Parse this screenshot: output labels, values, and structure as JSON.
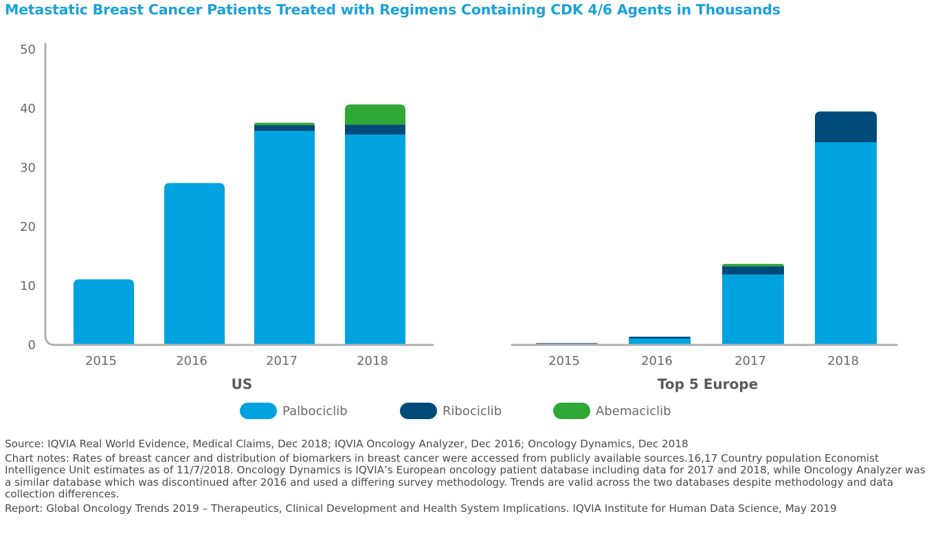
{
  "title": "Metastatic Breast Cancer Patients Treated with Regimens Containing CDK 4/6 Agents in Thousands",
  "chart_data": {
    "type": "bar",
    "stacked": true,
    "yticks": [
      0,
      10,
      20,
      30,
      40,
      50
    ],
    "ylim": [
      0,
      50
    ],
    "groups": [
      {
        "label": "US",
        "categories": [
          "2015",
          "2016",
          "2017",
          "2018"
        ],
        "series": [
          {
            "name": "Palbociclib",
            "values": [
              11.1,
              27.4,
              36.2,
              35.6
            ]
          },
          {
            "name": "Ribociclib",
            "values": [
              0,
              0,
              1.0,
              1.7
            ]
          },
          {
            "name": "Abemaciclib",
            "values": [
              0,
              0,
              0.4,
              3.4
            ]
          }
        ]
      },
      {
        "label": "Top 5 Europe",
        "categories": [
          "2015",
          "2016",
          "2017",
          "2018"
        ],
        "series": [
          {
            "name": "Palbociclib",
            "values": [
              0.2,
              1.1,
              11.9,
              34.3
            ]
          },
          {
            "name": "Ribociclib",
            "values": [
              0.1,
              0.3,
              1.4,
              5.2
            ]
          },
          {
            "name": "Abemaciclib",
            "values": [
              0,
              0,
              0.4,
              0
            ]
          }
        ]
      }
    ],
    "colors": {
      "Palbociclib": "#00a3e0",
      "Ribociclib": "#004b7a",
      "Abemaciclib": "#2fa836"
    },
    "axis_color": "#b0b0b0"
  },
  "legend": [
    {
      "name": "Palbociclib",
      "color": "#00a3e0"
    },
    {
      "name": "Ribociclib",
      "color": "#004b7a"
    },
    {
      "name": "Abemaciclib",
      "color": "#2fa836"
    }
  ],
  "notes": {
    "source": "Source: IQVIA Real World Evidence, Medical Claims, Dec 2018; IQVIA Oncology Analyzer, Dec 2016; Oncology Dynamics, Dec 2018",
    "chart_notes": "Chart notes: Rates of breast cancer and distribution of biomarkers in breast cancer were accessed from publicly available sources.16,17 Country population Economist Intelligence Unit estimates as of 11/7/2018. Oncology Dynamics is IQVIA’s European oncology patient database including data for 2017 and 2018, while Oncology Analyzer was a similar database which was discontinued after 2016 and used a differing survey methodology. Trends are valid across the two databases despite methodology and data collection differences.",
    "report": "Report: Global Oncology Trends 2019 – Therapeutics, Clinical Development and Health System Implications. IQVIA Institute for Human Data Science, May 2019"
  }
}
